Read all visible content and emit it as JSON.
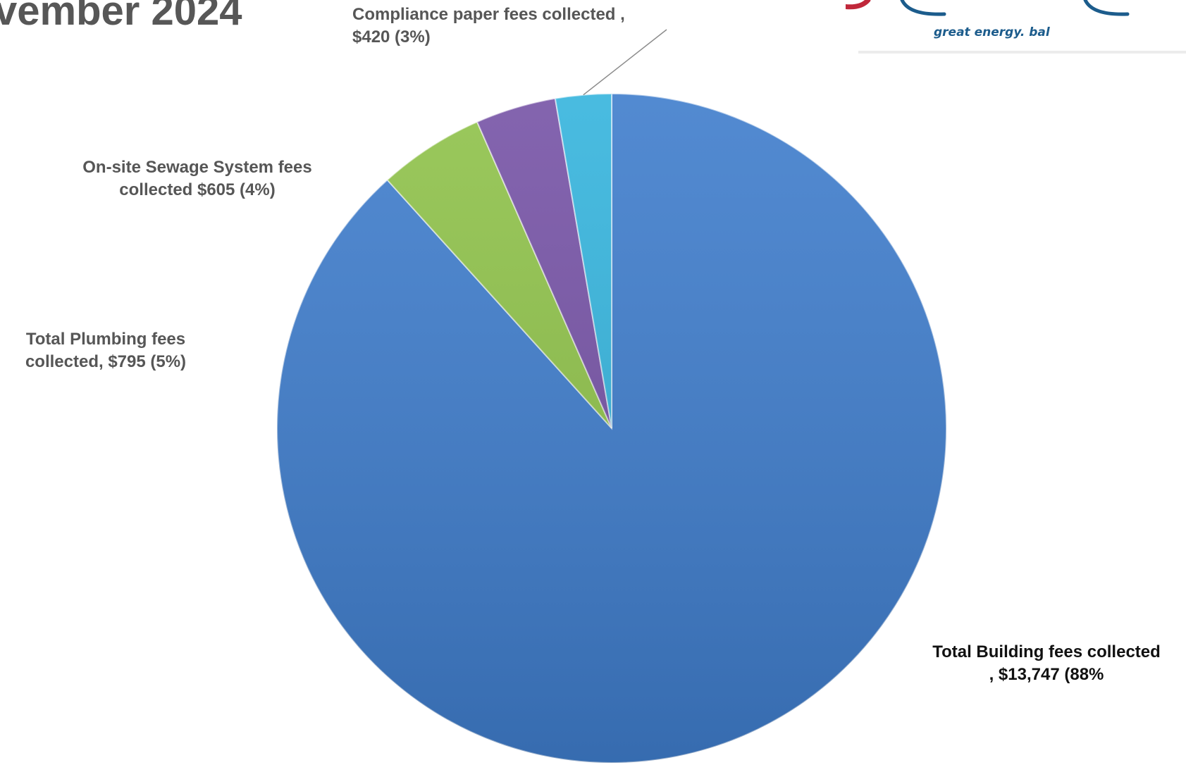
{
  "page": {
    "title": "vember 2024"
  },
  "logo": {
    "tagline": "great energy. bal"
  },
  "chart_data": {
    "type": "pie",
    "title": "",
    "start_angle_deg": 0,
    "direction": "clockwise",
    "slices": [
      {
        "label": "Total Building fees collected",
        "value": 13747,
        "percent": 88,
        "color": "#3f7dcc",
        "text_lines": [
          "Total Building fees collected",
          ",  $13,747  (88%"
        ]
      },
      {
        "label": "Total Plumbing fees collected",
        "value": 795,
        "percent": 5,
        "color": "#8fc24a",
        "text_lines": [
          "Total Plumbing fees",
          "collected,  $795  (5%)"
        ]
      },
      {
        "label": "On-site Sewage System fees collected",
        "value": 605,
        "percent": 4,
        "color": "#7653a6",
        "text_lines": [
          "On-site Sewage System fees",
          "collected  $605  (4%)"
        ]
      },
      {
        "label": "Compliance paper fees collected",
        "value": 420,
        "percent": 3,
        "color": "#35b4dd",
        "text_lines": [
          "Compliance paper fees collected ,",
          "$420 (3%)"
        ]
      }
    ]
  }
}
